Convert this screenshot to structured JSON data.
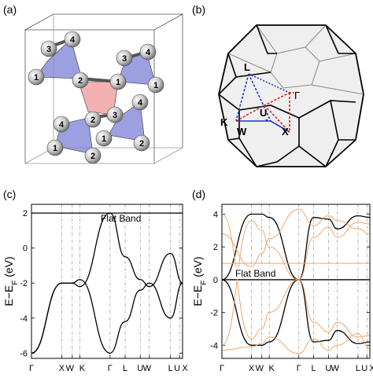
{
  "panels": {
    "a": {
      "label": "(a)",
      "sites": [
        "3",
        "4",
        "1",
        "2",
        "1",
        "3",
        "4",
        "1",
        "2",
        "4",
        "3",
        "1",
        "2",
        "4",
        "1",
        "2"
      ]
    },
    "b": {
      "label": "(b)",
      "points": [
        "L",
        "Γ",
        "U",
        "K",
        "W",
        "X"
      ]
    },
    "c": {
      "label": "(c)",
      "annotation": "Flat Band"
    },
    "d": {
      "label": "(d)",
      "annotation": "Flat Band"
    }
  },
  "colors": {
    "tetra_blue": "#7b7fd6",
    "tetra_red": "#f3a3a3",
    "band_black": "#000000",
    "band_orange": "#f2a66a",
    "path_blue": "#2233cc",
    "path_red": "#dd2222"
  },
  "chart_data": [
    {
      "type": "line",
      "panel": "c",
      "ylabel": "E−E_F (eV)",
      "ylim": [
        -6.3,
        2.5
      ],
      "yticks": [
        -6,
        -4,
        -2,
        0,
        2
      ],
      "x": [
        0,
        1,
        1.35,
        1.6,
        2.6,
        3.1,
        3.6,
        3.9,
        4.6,
        5.0
      ],
      "xticks": [
        "Γ",
        "X",
        "W",
        "K",
        "Γ",
        "L",
        "U",
        "W",
        "L",
        "U",
        "X"
      ],
      "xtick_positions": [
        0,
        1,
        1.35,
        1.6,
        2.6,
        3.1,
        3.6,
        3.9,
        4.6,
        4.9,
        5.0
      ],
      "series": [
        {
          "values": [
            2.0,
            2.0,
            2.0,
            2.0,
            2.0,
            2.0,
            2.0,
            2.0,
            2.0,
            2.0
          ]
        },
        {
          "values": [
            -6.0,
            -2.0,
            -2.0,
            -2.2,
            2.0,
            -0.5,
            -1.8,
            -2.2,
            -0.3,
            -2.0
          ]
        },
        {
          "values": [
            -6.0,
            -2.0,
            -2.0,
            -1.8,
            -6.0,
            -4.2,
            -2.4,
            -2.0,
            -4.0,
            -2.0
          ]
        }
      ]
    },
    {
      "type": "line",
      "panel": "d",
      "ylim": [
        -4.8,
        4.6
      ],
      "yticks": [
        -4,
        -2,
        0,
        2,
        4
      ],
      "x": [
        0,
        1,
        1.35,
        1.6,
        2.6,
        3.1,
        3.6,
        3.9,
        4.6,
        5.0
      ],
      "xticks": [
        "Γ",
        "X",
        "W",
        "K",
        "Γ",
        "L",
        "U",
        "W",
        "L",
        "U",
        "X"
      ],
      "xtick_positions": [
        0,
        1,
        1.35,
        1.6,
        2.6,
        3.1,
        3.6,
        3.9,
        4.6,
        4.9,
        5.0
      ],
      "series": [
        {
          "values": [
            0,
            4.0,
            4.0,
            3.8,
            0,
            3.8,
            3.7,
            3.1,
            3.9,
            3.8
          ]
        },
        {
          "values": [
            0,
            -4.0,
            -4.0,
            -3.8,
            0,
            -3.8,
            -3.7,
            -3.1,
            -3.9,
            -3.8
          ]
        },
        {
          "values": [
            0,
            0,
            0,
            0,
            0,
            0,
            0,
            0,
            0,
            0
          ]
        },
        {
          "values": [
            1.0,
            1.0,
            1.0,
            1.0,
            1.0,
            1.0,
            1.0,
            1.0,
            1.0,
            1.0
          ],
          "color": "orange"
        },
        {
          "values": [
            -4.0,
            3.6,
            3.0,
            2.0,
            0,
            2.6,
            3.2,
            2.6,
            3.5,
            3.4
          ],
          "color": "orange"
        },
        {
          "values": [
            4.0,
            -3.6,
            -3.0,
            -2.0,
            0,
            -2.6,
            -3.2,
            -2.6,
            -3.5,
            -3.4
          ],
          "color": "orange"
        },
        {
          "values": [
            -4.3,
            -4.1,
            -3.9,
            -3.5,
            -4.5,
            -3.6,
            -4.3,
            -4.0,
            -3.3,
            -4.2
          ],
          "color": "orange"
        },
        {
          "values": [
            2.8,
            0.8,
            1.6,
            2.5,
            4.3,
            3.3,
            3.9,
            3.6,
            3.1,
            2.8
          ],
          "color": "orange"
        }
      ]
    }
  ]
}
